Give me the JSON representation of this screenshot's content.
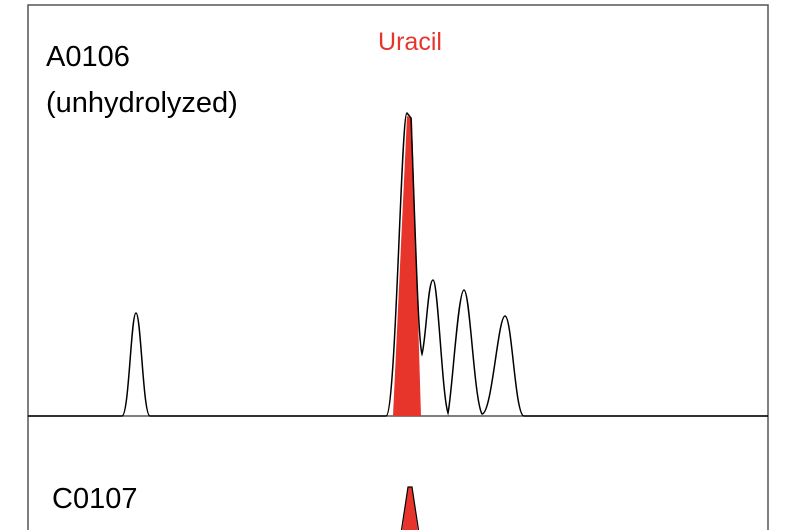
{
  "peak_label": "Uracil",
  "panels": [
    {
      "label": "A0106",
      "sublabel": "(unhydrolyzed)"
    },
    {
      "label": "C0107"
    }
  ]
}
